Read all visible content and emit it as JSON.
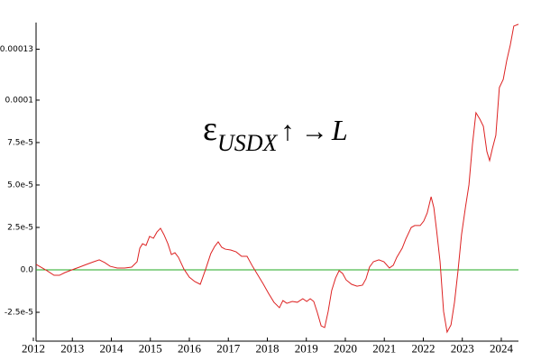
{
  "chart_data": {
    "type": "line",
    "annotation": {
      "symbol": "ε",
      "subscript": "USDX",
      "arrows": "↑ →",
      "target": "L"
    },
    "x": [
      2012.07,
      2012.23,
      2012.35,
      2012.53,
      2012.67,
      2012.81,
      2012.99,
      2013.18,
      2013.36,
      2013.55,
      2013.69,
      2013.83,
      2013.97,
      2014.15,
      2014.34,
      2014.52,
      2014.66,
      2014.73,
      2014.8,
      2014.89,
      2014.98,
      2015.08,
      2015.17,
      2015.26,
      2015.35,
      2015.45,
      2015.54,
      2015.63,
      2015.72,
      2015.86,
      2016.0,
      2016.14,
      2016.28,
      2016.42,
      2016.55,
      2016.65,
      2016.74,
      2016.83,
      2016.92,
      2017.06,
      2017.2,
      2017.34,
      2017.48,
      2017.62,
      2017.76,
      2017.9,
      2018.03,
      2018.17,
      2018.31,
      2018.4,
      2018.5,
      2018.64,
      2018.77,
      2018.91,
      2019.01,
      2019.1,
      2019.19,
      2019.28,
      2019.38,
      2019.47,
      2019.56,
      2019.65,
      2019.75,
      2019.84,
      2019.93,
      2020.02,
      2020.16,
      2020.3,
      2020.44,
      2020.53,
      2020.62,
      2020.72,
      2020.86,
      2020.99,
      2021.13,
      2021.23,
      2021.32,
      2021.46,
      2021.55,
      2021.69,
      2021.78,
      2021.92,
      2022.01,
      2022.1,
      2022.2,
      2022.27,
      2022.34,
      2022.43,
      2022.52,
      2022.61,
      2022.71,
      2022.8,
      2022.89,
      2022.98,
      2023.08,
      2023.17,
      2023.26,
      2023.35,
      2023.45,
      2023.54,
      2023.63,
      2023.7,
      2023.77,
      2023.86,
      2023.95,
      2024.05,
      2024.14,
      2024.23,
      2024.32,
      2024.44
    ],
    "series": [
      {
        "color": "#dd2222",
        "values": [
          3.2e-06,
          1.1e-06,
          -5e-07,
          -3.2e-06,
          -3.2e-06,
          -1.6e-06,
          0,
          1.6e-06,
          3.2e-06,
          4.8e-06,
          5.9e-06,
          4.3e-06,
          2.1e-06,
          1.1e-06,
          1.1e-06,
          1.6e-06,
          4.8e-06,
          1.28e-05,
          1.54e-05,
          1.44e-05,
          1.97e-05,
          1.86e-05,
          2.23e-05,
          2.45e-05,
          2.07e-05,
          1.54e-05,
          9e-06,
          1.01e-05,
          7.4e-06,
          5e-07,
          -4.3e-06,
          -6.9e-06,
          -8.5e-06,
          5e-07,
          9.6e-06,
          1.38e-05,
          1.65e-05,
          1.33e-05,
          1.22e-05,
          1.17e-05,
          1.06e-05,
          8e-06,
          8e-06,
          2.1e-06,
          -3.2e-06,
          -8.5e-06,
          -1.38e-05,
          -1.91e-05,
          -2.23e-05,
          -1.81e-05,
          -1.97e-05,
          -1.86e-05,
          -1.91e-05,
          -1.7e-05,
          -1.86e-05,
          -1.7e-05,
          -1.86e-05,
          -2.5e-05,
          -3.3e-05,
          -3.4e-05,
          -2.45e-05,
          -1.22e-05,
          -4.8e-06,
          -5e-07,
          -2.1e-06,
          -5.9e-06,
          -8.5e-06,
          -9.6e-06,
          -9e-06,
          -5.3e-06,
          1.6e-06,
          4.8e-06,
          5.9e-06,
          4.8e-06,
          1.1e-06,
          2.7e-06,
          7.4e-06,
          1.28e-05,
          1.81e-05,
          2.5e-05,
          2.61e-05,
          2.61e-05,
          2.87e-05,
          3.35e-05,
          4.31e-05,
          3.67e-05,
          2.34e-05,
          4.8e-06,
          -2.45e-05,
          -3.67e-05,
          -3.24e-05,
          -1.91e-05,
          -5e-07,
          2.07e-05,
          3.67e-05,
          5e-05,
          7.39e-05,
          9.26e-05,
          8.88e-05,
          8.46e-05,
          6.97e-05,
          6.44e-05,
          7.13e-05,
          7.93e-05,
          0.0001074,
          0.0001122,
          0.0001234,
          0.0001324,
          0.0001436,
          0.0001447
        ]
      }
    ],
    "hline": 0,
    "hline_color": "#22aa22",
    "xlim": [
      2012,
      2024.44
    ],
    "xticks": [
      2012,
      2013,
      2014,
      2015,
      2016,
      2017,
      2018,
      2019,
      2020,
      2021,
      2022,
      2023,
      2024
    ],
    "ylim": [
      -4.2e-05,
      0.0001457
    ],
    "yticks": [
      {
        "value": -2.5e-05,
        "label": "-2.5e-5"
      },
      {
        "value": 0,
        "label": "0.0"
      },
      {
        "value": 2.5e-05,
        "label": "2.5e-5"
      },
      {
        "value": 5e-05,
        "label": "5.0e-5"
      },
      {
        "value": 7.5e-05,
        "label": "7.5e-5"
      },
      0.0001,
      0.00013
    ]
  }
}
